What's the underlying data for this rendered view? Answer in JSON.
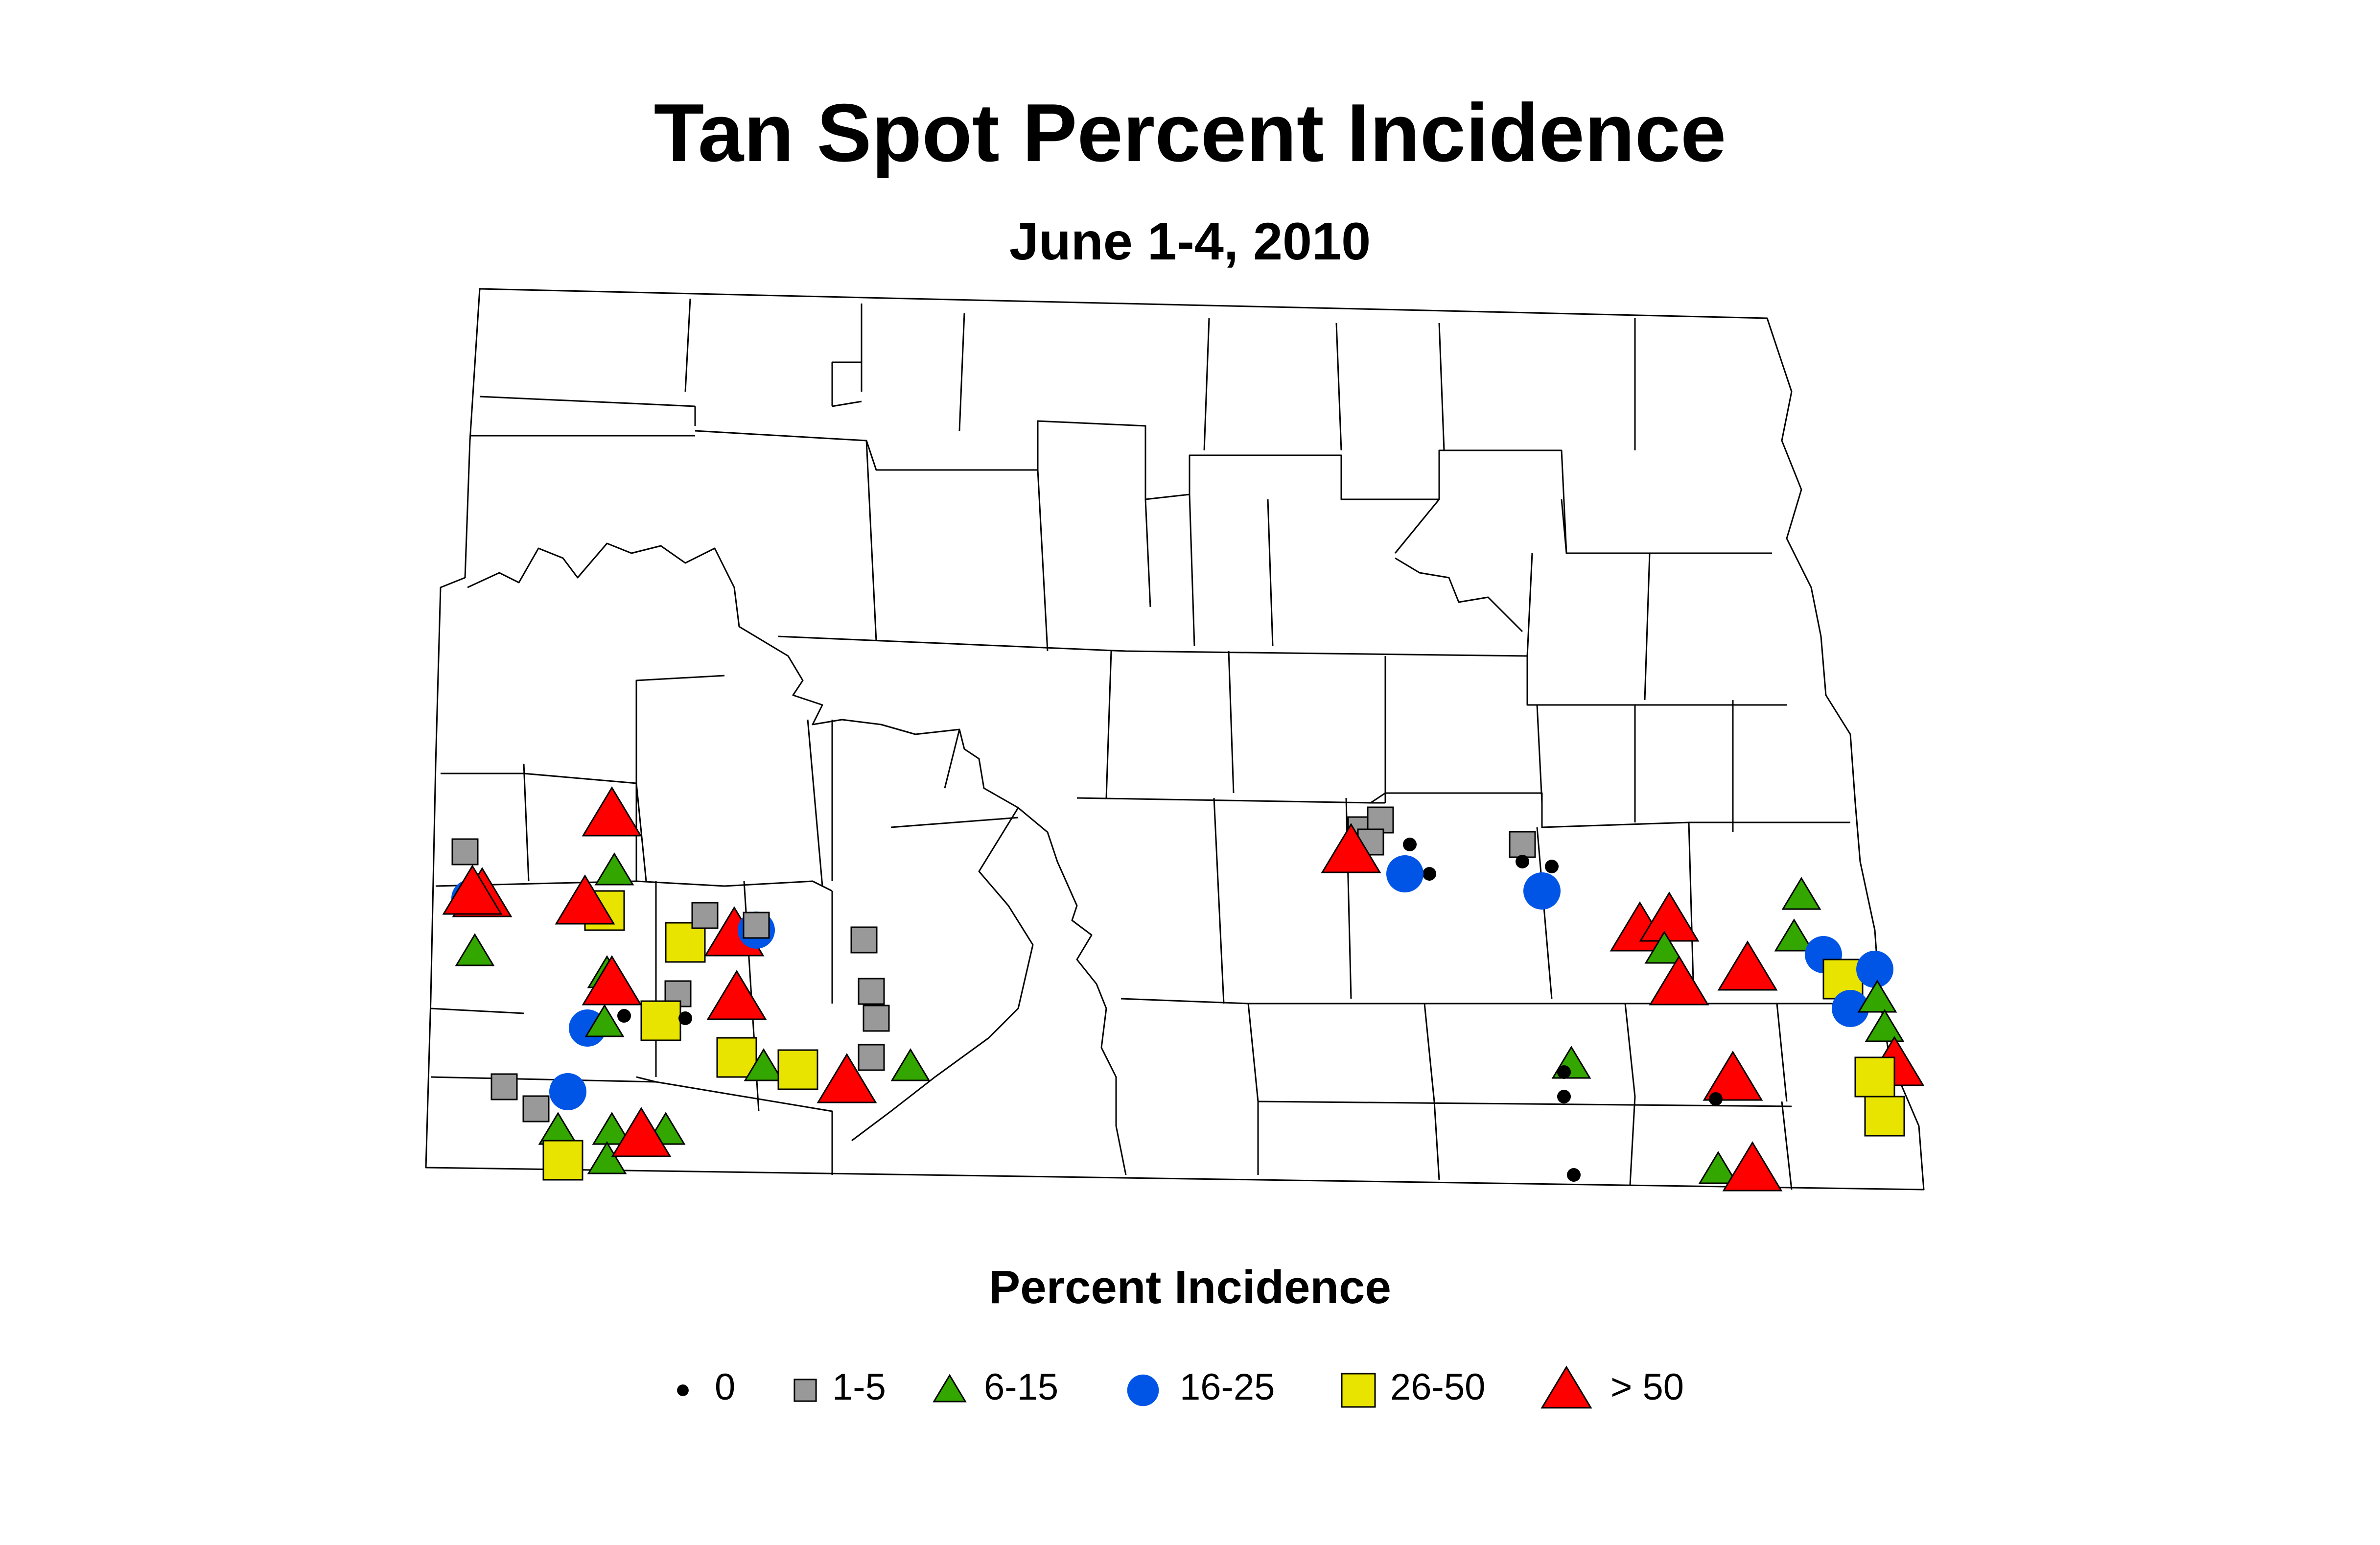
{
  "title": "Tan Spot Percent Incidence",
  "subtitle": "June 1-4, 2010",
  "legend": {
    "title": "Percent Incidence",
    "items": [
      {
        "label": "0",
        "symbol": "dot",
        "color": "#000000"
      },
      {
        "label": "1-5",
        "symbol": "square",
        "color": "#999999"
      },
      {
        "label": "6-15",
        "symbol": "triangle",
        "color": "#33a600"
      },
      {
        "label": "16-25",
        "symbol": "circle",
        "color": "#0055e6"
      },
      {
        "label": "26-50",
        "symbol": "square",
        "color": "#e8e400"
      },
      {
        "label": "> 50",
        "symbol": "triangle",
        "color": "#ff0000"
      }
    ]
  }
}
